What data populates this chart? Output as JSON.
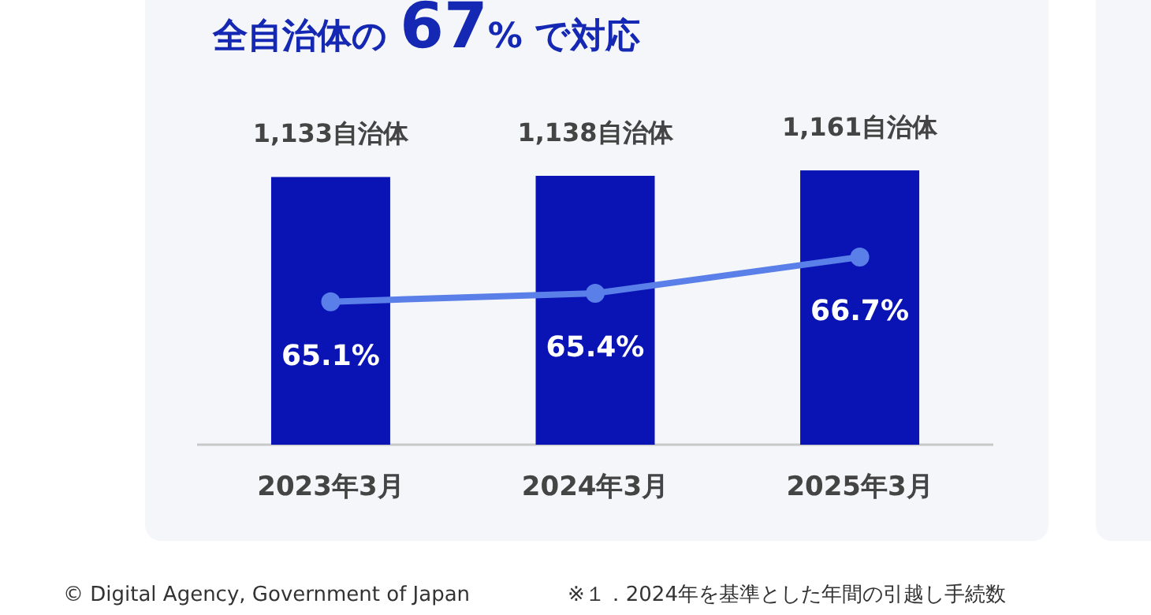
{
  "chart_data": {
    "type": "bar",
    "title": "全自治体の 67% で対応",
    "categories": [
      "2023年3月",
      "2024年3月",
      "2025年3月"
    ],
    "series": [
      {
        "color": "#0a14b4",
        "values": [
          1133,
          1138,
          1161
        ],
        "value_labels": [
          "1,133自治体",
          "1,138自治体",
          "1,161自治体"
        ]
      },
      {
        "type": "line",
        "axis": "y2",
        "color": "#5b7fe8",
        "marker": "circle",
        "values": [
          65.1,
          65.4,
          66.7
        ],
        "value_labels": [
          "65.1%",
          "65.4%",
          "66.7%"
        ]
      }
    ],
    "tick_labels": "x",
    "annotations": [
      "© Digital Agency, Government of Japan",
      "※１．2024年を基準とした年間の引越し手続数"
    ]
  }
}
